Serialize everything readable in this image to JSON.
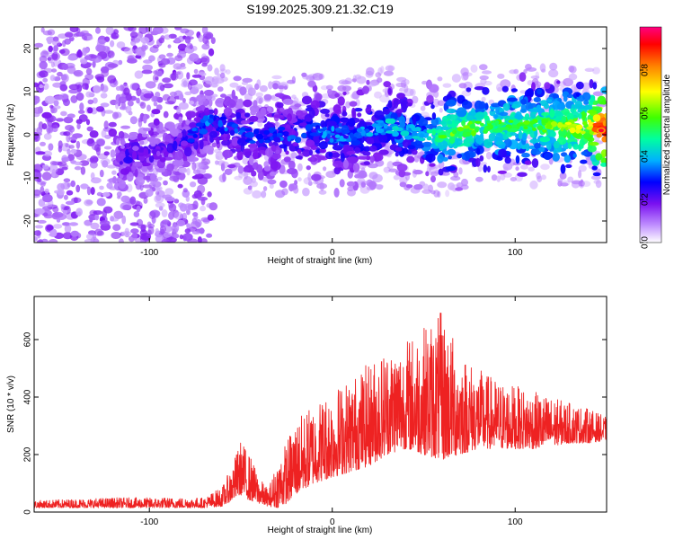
{
  "chart_data": [
    {
      "id": "spectrogram",
      "type": "heatmap",
      "title": "S199.2025.309.21.32.C19",
      "xlabel": "Height of straight line (km)",
      "ylabel": "Frequency (Hz)",
      "xlim": [
        -163,
        150
      ],
      "ylim": [
        -25,
        25
      ],
      "xticks": [
        -100,
        0,
        100
      ],
      "xtick_labels": [
        "-100",
        "0",
        "100"
      ],
      "yticks": [
        -20,
        -10,
        0,
        10,
        20
      ],
      "ytick_labels": [
        "-20",
        "-10",
        "0",
        "10",
        "20"
      ],
      "colorbar": {
        "label": "Normalized spectral amplitude",
        "range": [
          0,
          1
        ],
        "ticks": [
          0.0,
          0.2,
          0.4,
          0.6,
          0.8
        ],
        "tick_labels": [
          "0.0",
          "0.2",
          "0.4",
          "0.6",
          "0.8"
        ],
        "colormap": [
          "#ffffff",
          "#b070ff",
          "#6a00e0",
          "#0000ff",
          "#00c0ff",
          "#00ff80",
          "#80ff00",
          "#ffff00",
          "#ff8000",
          "#ff0000",
          "#ff0080"
        ]
      },
      "ridge": {
        "x": [
          -163,
          -140,
          -110,
          -95,
          -85,
          -75,
          -68,
          -60,
          -50,
          -40,
          -30,
          -20,
          -10,
          0,
          10,
          20,
          30,
          40,
          50,
          60,
          70,
          80,
          90,
          100,
          110,
          120,
          130,
          140,
          147
        ],
        "freq": [
          -6,
          -6,
          -5,
          -4,
          -2,
          0,
          3,
          2,
          1,
          -1,
          0,
          0,
          1,
          0,
          0,
          1,
          2,
          1,
          0,
          0,
          1,
          2,
          2,
          2,
          2,
          2,
          2,
          2,
          1
        ],
        "amplitude": [
          0.12,
          0.12,
          0.22,
          0.18,
          0.2,
          0.25,
          0.3,
          0.25,
          0.25,
          0.22,
          0.25,
          0.25,
          0.28,
          0.3,
          0.3,
          0.3,
          0.35,
          0.35,
          0.35,
          0.5,
          0.55,
          0.5,
          0.5,
          0.5,
          0.5,
          0.55,
          0.6,
          0.6,
          0.95
        ]
      },
      "noise_region_x": [
        -163,
        -65
      ]
    },
    {
      "id": "snr",
      "type": "line",
      "xlabel": "Height of straight line (km)",
      "ylabel": "SNR (10 * v/v)",
      "xlim": [
        -163,
        150
      ],
      "ylim": [
        0,
        750
      ],
      "xticks": [
        -100,
        0,
        100
      ],
      "xtick_labels": [
        "-100",
        "0",
        "100"
      ],
      "yticks": [
        0,
        200,
        400,
        600
      ],
      "ytick_labels": [
        "0",
        "200",
        "400",
        "600"
      ],
      "series": [
        {
          "name": "SNR",
          "color": "#ee2222",
          "envelope_x": [
            -163,
            -120,
            -70,
            -60,
            -55,
            -50,
            -45,
            -40,
            -35,
            -30,
            -25,
            -20,
            -10,
            0,
            10,
            20,
            30,
            40,
            50,
            60,
            70,
            80,
            90,
            100,
            110,
            120,
            130,
            140,
            150
          ],
          "envelope_low": [
            15,
            15,
            15,
            20,
            40,
            60,
            40,
            30,
            20,
            15,
            30,
            60,
            100,
            120,
            140,
            160,
            200,
            220,
            200,
            180,
            200,
            220,
            220,
            220,
            220,
            230,
            240,
            240,
            250
          ],
          "envelope_high": [
            40,
            50,
            50,
            90,
            160,
            250,
            200,
            120,
            80,
            180,
            250,
            320,
            380,
            430,
            470,
            520,
            580,
            600,
            650,
            700,
            560,
            500,
            460,
            440,
            420,
            400,
            380,
            360,
            330
          ]
        }
      ]
    }
  ]
}
